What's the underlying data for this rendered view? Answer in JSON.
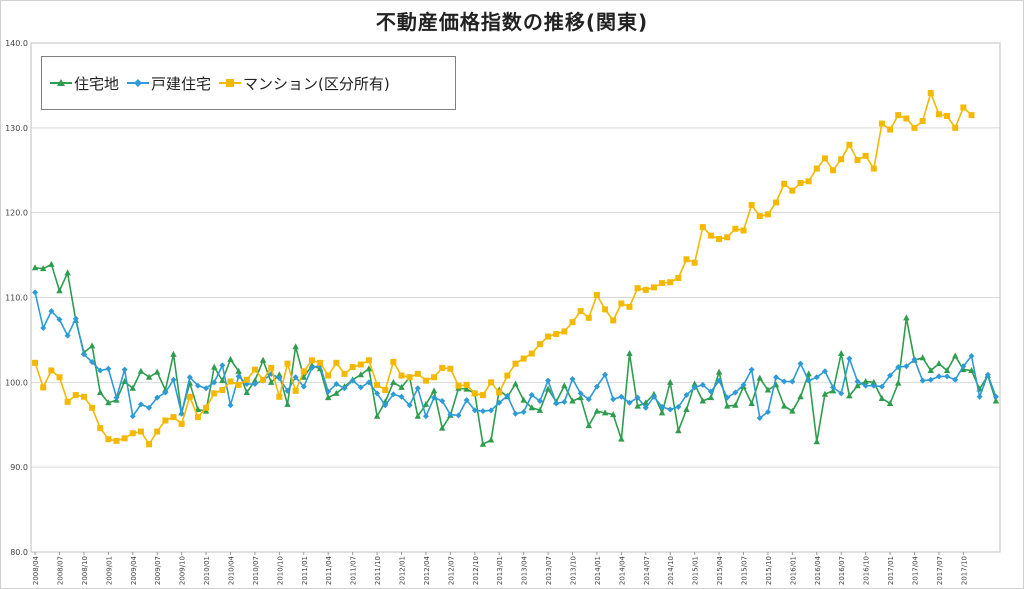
{
  "chart_data": {
    "type": "line",
    "title": "不動産価格指数の推移(関東)",
    "xlabel": "",
    "ylabel": "",
    "ylim": [
      80,
      140
    ],
    "yticks": [
      "80.0",
      "90.0",
      "100.0",
      "110.0",
      "120.0",
      "130.0",
      "140.0"
    ],
    "grid": true,
    "legend_position": "top-left",
    "x_tick_labels": [
      "2008/04",
      "2008/07",
      "2008/10",
      "2009/01",
      "2009/04",
      "2009/07",
      "2009/10",
      "2010/01",
      "2010/04",
      "2010/07",
      "2010/10",
      "2011/01",
      "2011/04",
      "2011/07",
      "2011/10",
      "2012/01",
      "2012/04",
      "2012/07",
      "2012/10",
      "2013/01",
      "2013/04",
      "2013/07",
      "2013/10",
      "2014/01",
      "2014/04",
      "2014/07",
      "2014/10",
      "2015/01",
      "2015/04",
      "2015/07",
      "2015/10",
      "2016/01",
      "2016/04",
      "2016/07",
      "2016/10",
      "2017/01",
      "2017/04",
      "2017/07",
      "2017/10"
    ],
    "x_start": "2008/04",
    "series": [
      {
        "name": "住宅地",
        "color": "#2e9d4e",
        "marker": "triangle",
        "values": [
          113.5,
          113.4,
          113.9,
          110.8,
          112.9,
          107.3,
          103.5,
          104.3,
          98.8,
          97.6,
          97.9,
          100.1,
          99.3,
          101.3,
          100.6,
          101.2,
          99.1,
          103.3,
          96.4,
          99.9,
          96.8,
          96.6,
          101.8,
          100.2,
          102.7,
          101.3,
          98.8,
          100.2,
          102.6,
          100.0,
          100.9,
          97.4,
          104.2,
          100.6,
          102.0,
          101.6,
          98.2,
          98.7,
          99.5,
          100.3,
          100.9,
          101.6,
          96.0,
          97.7,
          100.0,
          99.4,
          100.6,
          96.0,
          97.4,
          99.0,
          94.6,
          96.1,
          99.3,
          99.2,
          98.7,
          92.7,
          93.2,
          99.1,
          98.3,
          99.8,
          97.9,
          97.0,
          96.7,
          99.2,
          97.7,
          99.6,
          97.8,
          98.2,
          94.9,
          96.6,
          96.4,
          96.2,
          93.3,
          103.4,
          97.2,
          97.6,
          98.6,
          96.4,
          100.0,
          94.3,
          96.8,
          99.8,
          97.8,
          98.2,
          101.2,
          97.2,
          97.3,
          99.5,
          97.5,
          100.5,
          99.1,
          99.7,
          97.2,
          96.6,
          98.3,
          101.0,
          93.0,
          98.6,
          99.0,
          103.4,
          98.4,
          99.6,
          100.1,
          100.0,
          98.1,
          97.5,
          99.9,
          107.6,
          102.6,
          102.9,
          101.4,
          102.2,
          101.4,
          103.1,
          101.5,
          101.4,
          99.2,
          100.8,
          97.8
        ]
      },
      {
        "name": "戸建住宅",
        "color": "#2e9bd6",
        "marker": "diamond",
        "values": [
          110.6,
          106.4,
          108.4,
          107.4,
          105.5,
          107.5,
          103.3,
          102.4,
          101.4,
          101.6,
          98.2,
          101.5,
          96.0,
          97.4,
          97.0,
          98.2,
          98.8,
          100.3,
          96.3,
          100.6,
          99.6,
          99.3,
          100.0,
          102.0,
          97.3,
          100.7,
          99.8,
          99.8,
          100.2,
          101.0,
          100.5,
          99.0,
          100.6,
          99.5,
          101.7,
          102.0,
          98.9,
          99.8,
          99.3,
          100.2,
          99.4,
          100.0,
          98.7,
          97.3,
          98.6,
          98.3,
          97.3,
          99.3,
          96.0,
          98.2,
          97.8,
          96.2,
          96.1,
          97.9,
          96.7,
          96.6,
          96.7,
          97.6,
          98.4,
          96.3,
          96.5,
          98.5,
          97.8,
          100.2,
          97.5,
          97.7,
          100.4,
          98.7,
          98.0,
          99.5,
          100.9,
          98.0,
          98.3,
          97.6,
          98.2,
          97.0,
          98.3,
          97.1,
          96.8,
          97.1,
          98.5,
          99.4,
          99.7,
          98.9,
          100.2,
          98.2,
          98.8,
          99.7,
          101.5,
          95.8,
          96.5,
          100.6,
          100.1,
          100.1,
          102.2,
          100.2,
          100.6,
          101.3,
          99.4,
          98.7,
          102.8,
          100.1,
          99.6,
          99.6,
          99.5,
          100.8,
          101.8,
          101.9,
          102.7,
          100.2,
          100.3,
          100.7,
          100.7,
          100.3,
          101.9,
          103.1,
          98.3,
          100.9,
          98.3
        ]
      },
      {
        "name": "マンション(区分所有)",
        "color": "#f5b800",
        "marker": "square",
        "values": [
          102.3,
          99.4,
          101.4,
          100.6,
          97.7,
          98.5,
          98.3,
          97.0,
          94.6,
          93.3,
          93.1,
          93.4,
          94.0,
          94.2,
          92.7,
          94.2,
          95.5,
          95.9,
          95.1,
          98.3,
          95.9,
          97.0,
          98.7,
          99.1,
          100.1,
          99.7,
          100.3,
          101.5,
          100.3,
          101.7,
          98.3,
          102.2,
          99.0,
          101.3,
          102.6,
          102.3,
          100.8,
          102.3,
          101.0,
          101.8,
          102.1,
          102.6,
          99.7,
          99.1,
          102.4,
          100.8,
          100.6,
          101.0,
          100.2,
          100.6,
          101.7,
          101.6,
          99.6,
          99.7,
          98.7,
          98.5,
          100.0,
          98.8,
          100.8,
          102.2,
          102.8,
          103.4,
          104.5,
          105.4,
          105.7,
          106.0,
          107.1,
          108.4,
          107.6,
          110.3,
          108.6,
          107.3,
          109.3,
          108.9,
          111.1,
          110.9,
          111.2,
          111.7,
          111.8,
          112.3,
          114.5,
          114.1,
          118.3,
          117.3,
          116.9,
          117.1,
          118.1,
          117.9,
          120.9,
          119.6,
          119.8,
          121.2,
          123.4,
          122.6,
          123.5,
          123.7,
          125.2,
          126.4,
          125.0,
          126.3,
          128.0,
          126.2,
          126.7,
          125.2,
          130.5,
          129.8,
          131.5,
          131.1,
          130.0,
          130.8,
          134.1,
          131.6,
          131.4,
          130.0,
          132.4,
          131.5
        ]
      }
    ]
  }
}
